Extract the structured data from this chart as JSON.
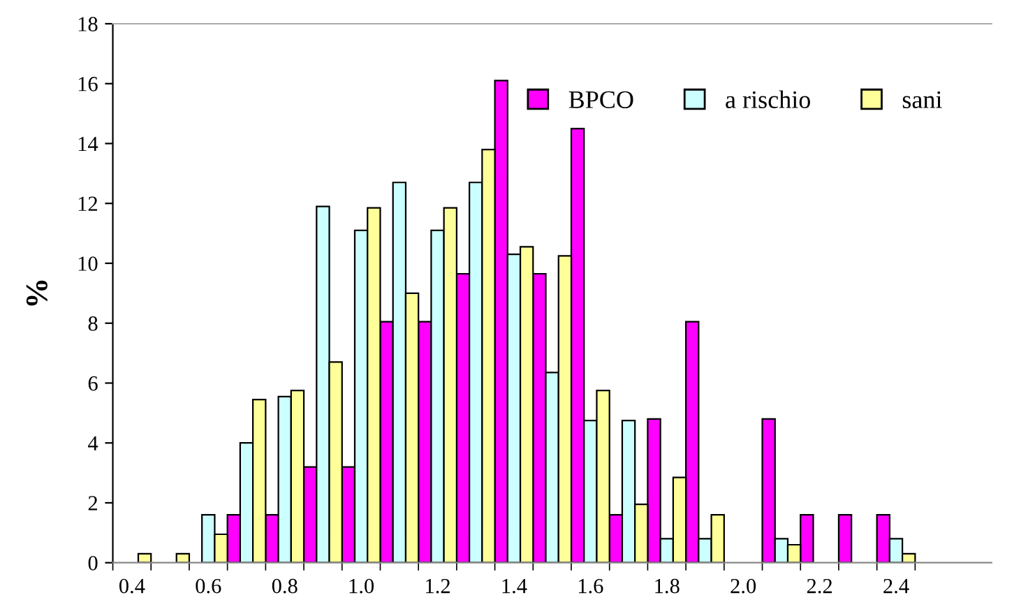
{
  "chart_data": {
    "type": "bar",
    "ylabel": "%",
    "categories": [
      "0.4",
      null,
      "0.6",
      null,
      "0.8",
      null,
      "1.0",
      null,
      "1.2",
      null,
      "1.4",
      null,
      "1.6",
      null,
      "1.8",
      null,
      "2.0",
      null,
      "2.2",
      null,
      "2.4",
      null,
      null
    ],
    "series": [
      {
        "name": "BPCO",
        "color": "#ff00ff",
        "values": [
          0,
          0,
          0,
          1.6,
          1.6,
          3.2,
          3.2,
          8.05,
          8.05,
          9.65,
          16.1,
          9.65,
          14.5,
          1.6,
          4.8,
          8.05,
          0,
          4.8,
          1.6,
          1.6,
          1.6,
          null,
          null
        ]
      },
      {
        "name": "a rischio",
        "color": "#ccffff",
        "values": [
          0,
          0,
          1.6,
          4.0,
          5.55,
          11.9,
          11.1,
          12.7,
          11.1,
          12.7,
          10.3,
          6.35,
          4.75,
          4.75,
          0.8,
          0.8,
          0,
          0.8,
          0,
          0,
          0.8,
          null,
          null
        ]
      },
      {
        "name": "sani",
        "color": "#ffff99",
        "values": [
          0.3,
          0.3,
          0.95,
          5.45,
          5.75,
          6.7,
          11.85,
          9.0,
          11.85,
          13.8,
          10.55,
          10.25,
          5.75,
          1.95,
          2.85,
          1.6,
          0,
          0.6,
          0,
          0,
          0.3,
          null,
          null
        ]
      }
    ],
    "ylim": [
      0,
      18
    ],
    "yticks": [
      0,
      2,
      4,
      6,
      8,
      10,
      12,
      14,
      16,
      18
    ],
    "grid": false,
    "legend": "top right"
  }
}
